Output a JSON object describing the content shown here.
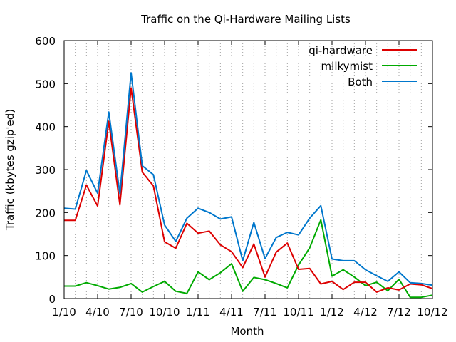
{
  "chart_data": {
    "type": "line",
    "title": "Traffic on the Qi-Hardware Mailing Lists",
    "xlabel": "Month",
    "ylabel": "Traffic (kbytes gzip'ed)",
    "ylim": [
      0,
      600
    ],
    "yticks": [
      0,
      100,
      200,
      300,
      400,
      500,
      600
    ],
    "xticks": [
      "1/10",
      "4/10",
      "7/10",
      "10/10",
      "1/11",
      "4/11",
      "7/11",
      "10/11",
      "1/12",
      "4/12",
      "7/12",
      "10/12"
    ],
    "legend_position": "top-right",
    "grid": "vertical dotted, monthly",
    "series": [
      {
        "name": "qi-hardware",
        "color": "#dd0000",
        "values": [
          182,
          182,
          264,
          215,
          412,
          218,
          490,
          294,
          262,
          132,
          117,
          175,
          152,
          157,
          125,
          109,
          72,
          127,
          50,
          108,
          129,
          68,
          70,
          34,
          40,
          21,
          38,
          38,
          15,
          25,
          20,
          34,
          32,
          23
        ]
      },
      {
        "name": "milkymist",
        "color": "#00aa00",
        "values": [
          29,
          29,
          37,
          30,
          22,
          26,
          35,
          15,
          28,
          40,
          17,
          12,
          62,
          44,
          60,
          81,
          17,
          49,
          44,
          35,
          25,
          78,
          118,
          183,
          52,
          67,
          50,
          30,
          38,
          18,
          45,
          3,
          3,
          8
        ]
      },
      {
        "name": "Both",
        "color": "#0077cc",
        "values": [
          210,
          208,
          298,
          245,
          434,
          244,
          525,
          309,
          288,
          171,
          133,
          187,
          210,
          200,
          185,
          190,
          88,
          177,
          93,
          142,
          154,
          148,
          187,
          216,
          92,
          88,
          88,
          67,
          53,
          40,
          62,
          37,
          35,
          31
        ]
      }
    ]
  }
}
